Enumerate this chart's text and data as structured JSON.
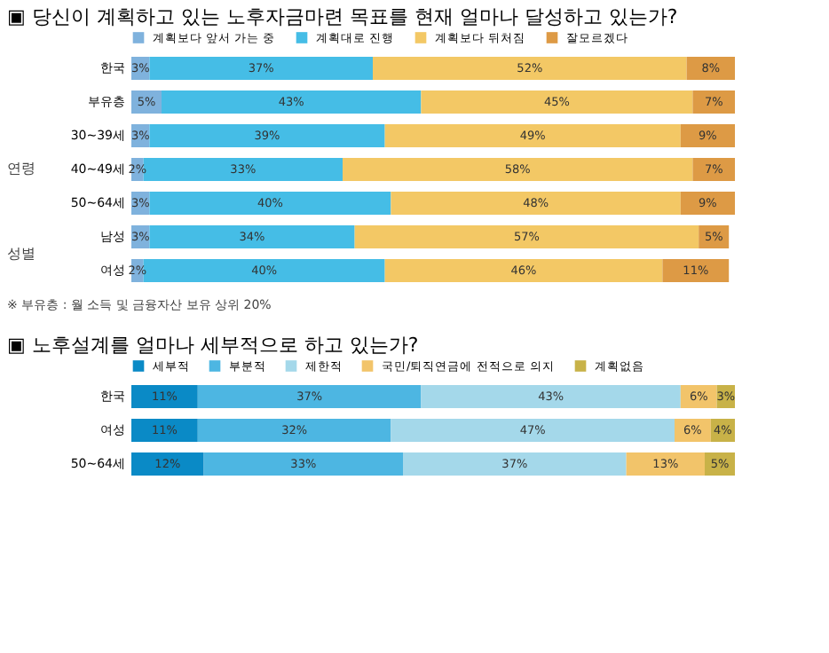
{
  "chart_data": [
    {
      "type": "bar",
      "orientation": "horizontal",
      "stacked": true,
      "title": "▣ 당신이 계획하고 있는 노후자금마련 목표를 현재 얼마나 달성하고 있는가?",
      "categories": [
        "한국",
        "부유층",
        "30~39세",
        "40~49세",
        "50~64세",
        "남성",
        "여성"
      ],
      "series": [
        {
          "name": "계획보다 앞서 가는 중",
          "color": "#7fb2dd",
          "values": [
            3,
            5,
            3,
            2,
            3,
            3,
            2
          ],
          "value_labels": [
            "3%",
            "5%",
            "3%",
            "2%",
            "3%",
            "3%",
            "2%"
          ]
        },
        {
          "name": "계획대로 진행",
          "color": "#45bde6",
          "values": [
            37,
            43,
            39,
            33,
            40,
            34,
            40
          ],
          "value_labels": [
            "37%",
            "43%",
            "39%",
            "33%",
            "40%",
            "34%",
            "40%"
          ]
        },
        {
          "name": "계획보다 뒤처짐",
          "color": "#f3c865",
          "values": [
            52,
            45,
            49,
            58,
            48,
            57,
            46
          ],
          "value_labels": [
            "52%",
            "45%",
            "49%",
            "58%",
            "48%",
            "57%",
            "46%"
          ]
        },
        {
          "name": "잘모르겠다",
          "color": "#dd9a45",
          "values": [
            8,
            7,
            9,
            7,
            9,
            5,
            11
          ],
          "value_labels": [
            "8%",
            "7%",
            "9%",
            "7%",
            "9%",
            "5%",
            "11%"
          ]
        }
      ],
      "xlim": [
        0,
        100
      ],
      "legend": "top",
      "tick_labels": "y",
      "annotations": [
        "연령",
        "성별",
        "※ 부유층 : 월 소득 및 금융자산 보유 상위 20%"
      ]
    },
    {
      "type": "bar",
      "orientation": "horizontal",
      "stacked": true,
      "title": "▣ 노후설계를 얼마나 세부적으로 하고 있는가?",
      "categories": [
        "한국",
        "여성",
        "50~64세"
      ],
      "series": [
        {
          "name": "세부적",
          "color": "#0a8ac6",
          "values": [
            11,
            11,
            12
          ],
          "value_labels": [
            "11%",
            "11%",
            "12%"
          ]
        },
        {
          "name": "부분적",
          "color": "#4db6e2",
          "values": [
            37,
            32,
            33
          ],
          "value_labels": [
            "37%",
            "32%",
            "33%"
          ]
        },
        {
          "name": "제한적",
          "color": "#a4d8ea",
          "values": [
            43,
            47,
            37
          ],
          "value_labels": [
            "43%",
            "47%",
            "37%"
          ]
        },
        {
          "name": "국민/퇴직연금에 전적으로 의지",
          "color": "#f2c46a",
          "values": [
            6,
            6,
            13
          ],
          "value_labels": [
            "6%",
            "6%",
            "13%"
          ]
        },
        {
          "name": "계획없음",
          "color": "#c8b248",
          "values": [
            3,
            4,
            5
          ],
          "value_labels": [
            "3%",
            "4%",
            "5%"
          ]
        }
      ],
      "xlim": [
        0,
        100
      ],
      "legend": "top",
      "tick_labels": "y"
    }
  ]
}
